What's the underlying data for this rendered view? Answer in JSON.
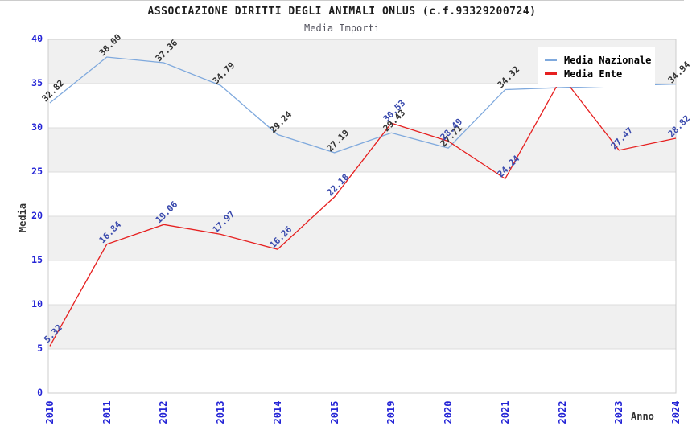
{
  "title": "ASSOCIAZIONE DIRITTI DEGLI ANIMALI ONLUS (c.f.93329200724)",
  "subtitle": "Media Importi",
  "axes": {
    "y_label": "Media",
    "x_label": "Anno",
    "y_ticks": [
      0,
      5,
      10,
      15,
      20,
      25,
      30,
      35,
      40
    ]
  },
  "colors": {
    "band": "#f0f0f0",
    "gridline": "#dddddd",
    "plot_border": "#cccccc",
    "tick_label": "#2424d6",
    "national_line": "#7fa9dd",
    "ente_line": "#e62020",
    "national_point_label": "#333333",
    "ente_point_label": "#3a4aad"
  },
  "chart_data": {
    "type": "line",
    "x": [
      "2010",
      "2011",
      "2012",
      "2013",
      "2014",
      "2015",
      "2019",
      "2020",
      "2021",
      "2022",
      "2023",
      "2024"
    ],
    "series": [
      {
        "name": "Media Nazionale",
        "color": "#7fa9dd",
        "label_color": "#333333",
        "values": [
          32.82,
          38.0,
          37.36,
          34.79,
          29.24,
          27.19,
          29.43,
          27.71,
          34.32,
          34.55,
          34.75,
          34.94
        ],
        "labels": [
          "32.82",
          "38.00",
          "37.36",
          "34.79",
          "29.24",
          "27.19",
          "29.43",
          "27.71",
          "34.32",
          null,
          null,
          "34.94"
        ]
      },
      {
        "name": "Media Ente",
        "color": "#e62020",
        "label_color": "#3a4aad",
        "values": [
          5.32,
          16.84,
          19.06,
          17.97,
          16.26,
          22.18,
          30.53,
          28.49,
          24.24,
          35.8,
          27.47,
          28.82
        ],
        "labels": [
          "5.32",
          "16.84",
          "19.06",
          "17.97",
          "16.26",
          "22.18",
          "30.53",
          "28.49",
          "24.24",
          null,
          "27.47",
          "28.82"
        ]
      }
    ],
    "title": "ASSOCIAZIONE DIRITTI DEGLI ANIMALI ONLUS (c.f.93329200724)",
    "subtitle": "Media Importi",
    "xlabel": "Anno",
    "ylabel": "Media",
    "ylim": [
      0,
      40
    ],
    "grid": "horizontal",
    "background_bands": "alternating gray/white every 5 units",
    "legend_position": "top-right"
  }
}
